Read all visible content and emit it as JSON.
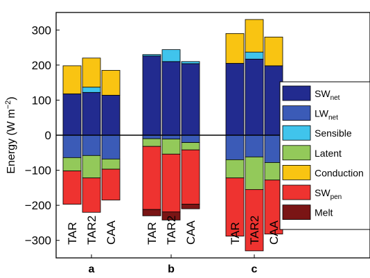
{
  "chart_data": {
    "type": "bar",
    "stacked": true,
    "ylabel_parts": [
      "Energy (W m",
      "−2",
      ")"
    ],
    "ylim": [
      -350,
      350
    ],
    "yticks": [
      -300,
      -200,
      -100,
      0,
      100,
      200,
      300
    ],
    "grid": false,
    "legend_position": "right",
    "groups": [
      {
        "label": "a",
        "bars": [
          {
            "label": "TAR",
            "up": {
              "SW_net": 118,
              "Sensible": 0,
              "Conduction": 80
            },
            "down": {
              "LW_net": 64,
              "Latent": 38,
              "SW_pen": 95,
              "Melt": 0
            }
          },
          {
            "label": "TAR2",
            "up": {
              "SW_net": 122,
              "Sensible": 15,
              "Conduction": 83
            },
            "down": {
              "LW_net": 58,
              "Latent": 64,
              "SW_pen": 98,
              "Melt": 0
            }
          },
          {
            "label": "CAA",
            "up": {
              "SW_net": 114,
              "Sensible": 0,
              "Conduction": 71
            },
            "down": {
              "LW_net": 68,
              "Latent": 29,
              "SW_pen": 88,
              "Melt": 0
            }
          }
        ]
      },
      {
        "label": "b",
        "bars": [
          {
            "label": "TAR",
            "up": {
              "SW_net": 226,
              "Sensible": 4,
              "Conduction": 0
            },
            "down": {
              "LW_net": 10,
              "Latent": 22,
              "SW_pen": 180,
              "Melt": 18
            }
          },
          {
            "label": "TAR2",
            "up": {
              "SW_net": 210,
              "Sensible": 34,
              "Conduction": 0
            },
            "down": {
              "LW_net": 11,
              "Latent": 43,
              "SW_pen": 165,
              "Melt": 23
            }
          },
          {
            "label": "CAA",
            "up": {
              "SW_net": 204,
              "Sensible": 6,
              "Conduction": 0
            },
            "down": {
              "LW_net": 21,
              "Latent": 21,
              "SW_pen": 155,
              "Melt": 13
            }
          }
        ]
      },
      {
        "label": "c",
        "bars": [
          {
            "label": "TAR",
            "up": {
              "SW_net": 205,
              "Sensible": 0,
              "Conduction": 85
            },
            "down": {
              "LW_net": 70,
              "Latent": 52,
              "SW_pen": 166,
              "Melt": 0
            }
          },
          {
            "label": "TAR2",
            "up": {
              "SW_net": 217,
              "Sensible": 20,
              "Conduction": 93
            },
            "down": {
              "LW_net": 62,
              "Latent": 93,
              "SW_pen": 175,
              "Melt": 0
            }
          },
          {
            "label": "CAA",
            "up": {
              "SW_net": 198,
              "Sensible": 0,
              "Conduction": 82
            },
            "down": {
              "LW_net": 78,
              "Latent": 50,
              "SW_pen": 154,
              "Melt": 0
            }
          }
        ]
      }
    ],
    "series": [
      {
        "key": "SW_net",
        "label_main": "SW",
        "label_sub": "net",
        "color": "#222b8f"
      },
      {
        "key": "LW_net",
        "label_main": "LW",
        "label_sub": "net",
        "color": "#3b5bb7"
      },
      {
        "key": "Sensible",
        "label_main": "Sensible",
        "label_sub": "",
        "color": "#40c4ec"
      },
      {
        "key": "Latent",
        "label_main": "Latent",
        "label_sub": "",
        "color": "#93c95a"
      },
      {
        "key": "Conduction",
        "label_main": "Conduction",
        "label_sub": "",
        "color": "#f9c412"
      },
      {
        "key": "SW_pen",
        "label_main": "SW",
        "label_sub": "pen",
        "color": "#ee3330"
      },
      {
        "key": "Melt",
        "label_main": "Melt",
        "label_sub": "",
        "color": "#7a1515"
      }
    ],
    "stack_up_order": [
      "SW_net",
      "Sensible",
      "Conduction"
    ],
    "stack_down_order": [
      "LW_net",
      "Latent",
      "SW_pen",
      "Melt"
    ]
  }
}
